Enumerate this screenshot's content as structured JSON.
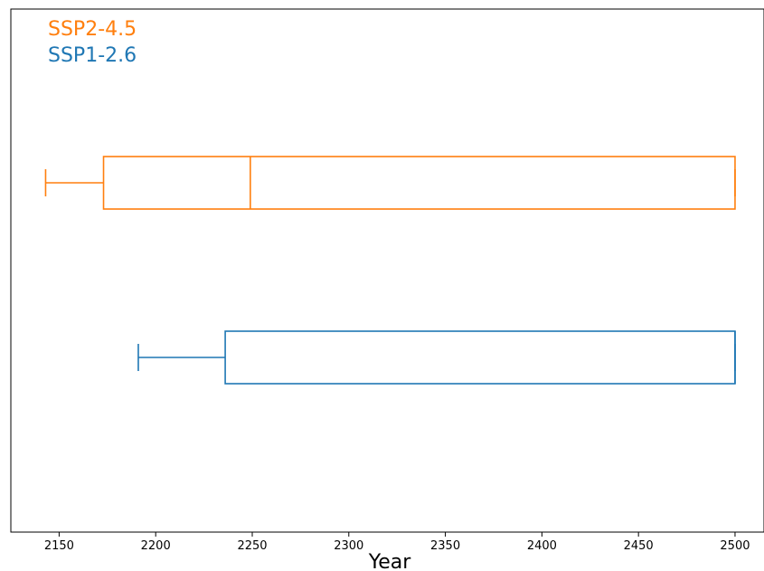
{
  "chart_data": {
    "type": "boxplot",
    "orientation": "horizontal",
    "xlabel": "Year",
    "ylabel": "",
    "title": "",
    "xlim": [
      2125,
      2515
    ],
    "x_ticks": [
      2150,
      2200,
      2250,
      2300,
      2350,
      2400,
      2450,
      2500
    ],
    "grid": false,
    "legend_position": "top-left",
    "series": [
      {
        "name": "SSP2-4.5",
        "color": "#ff7f0e",
        "whisker_low": 2143,
        "q1": 2173,
        "median": 2249,
        "q3": 2500,
        "whisker_high": 2500
      },
      {
        "name": "SSP1-2.6",
        "color": "#1f77b4",
        "whisker_low": 2191,
        "q1": 2236,
        "median": 2500,
        "q3": 2500,
        "whisker_high": 2500
      }
    ]
  }
}
